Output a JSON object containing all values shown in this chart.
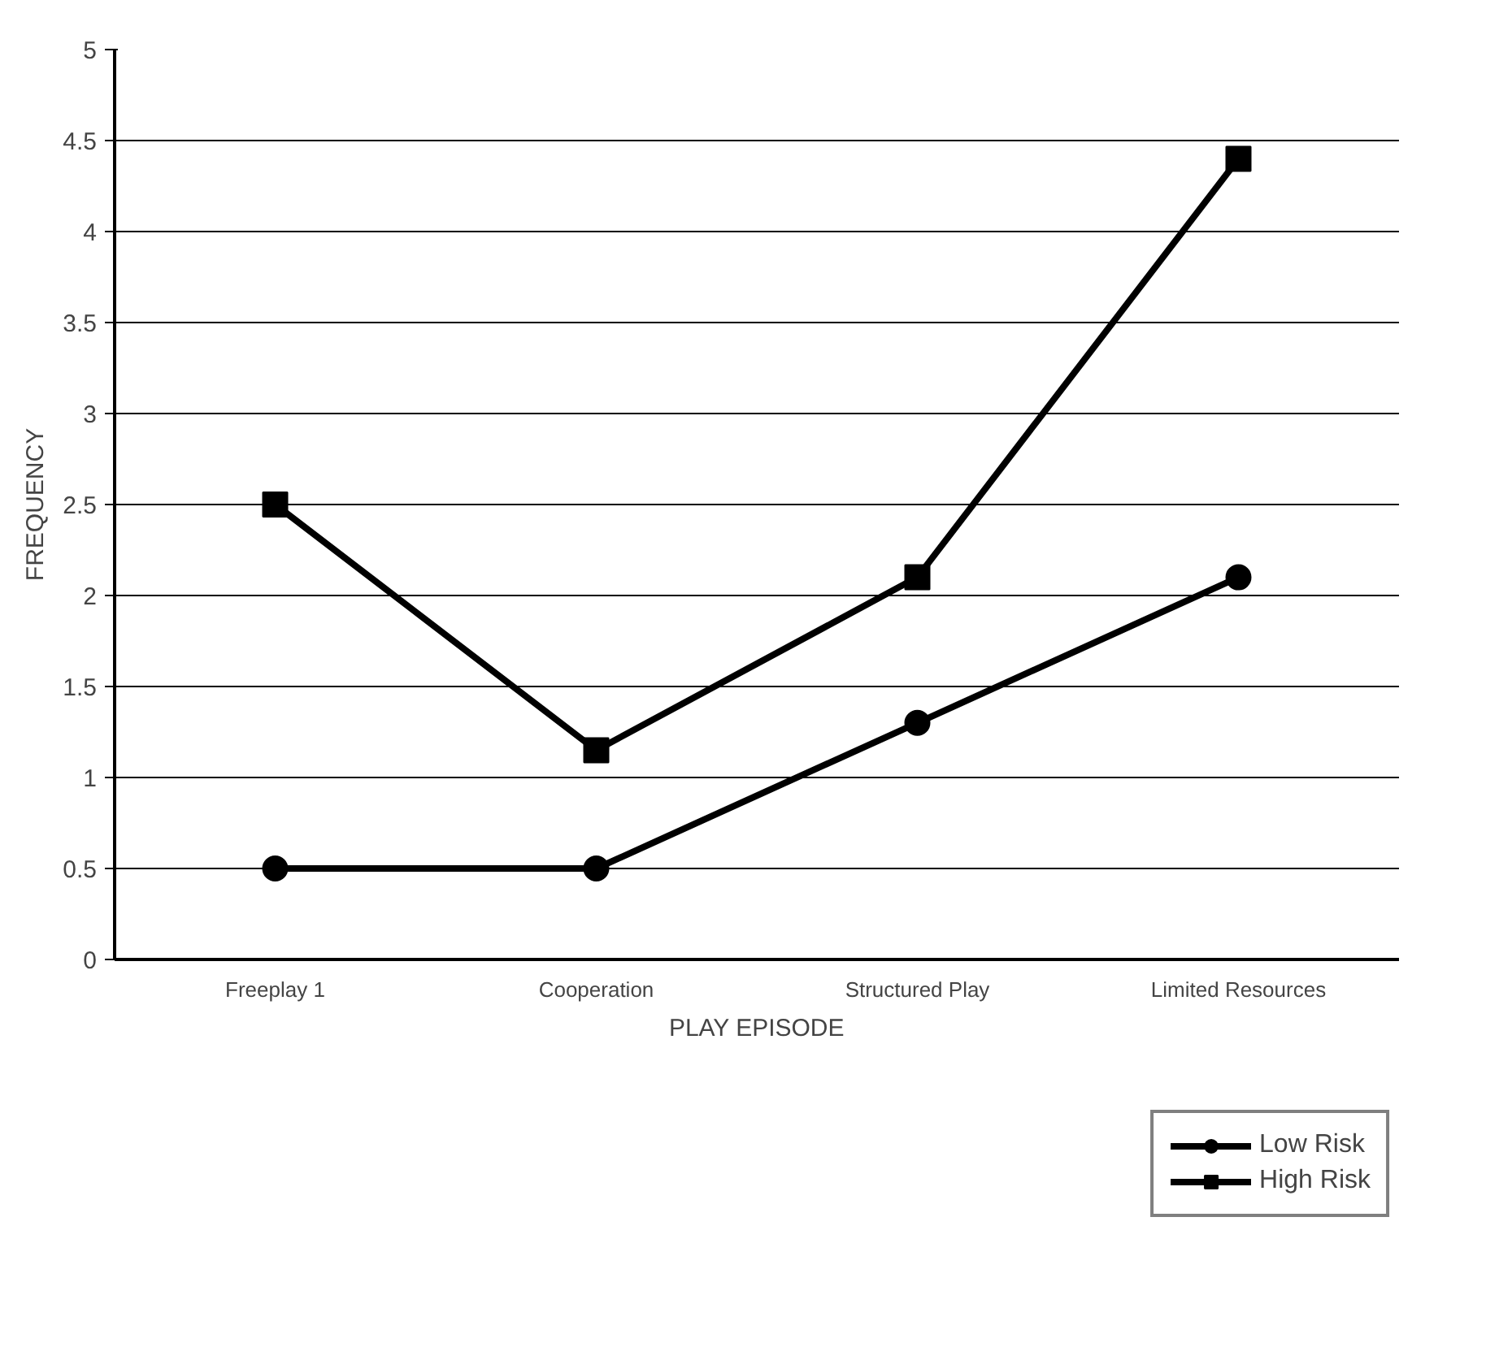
{
  "chart_data": {
    "type": "line",
    "xlabel": "PLAY EPISODE",
    "ylabel": "FREQUENCY",
    "categories": [
      "Freeplay 1",
      "Cooperation",
      "Structured Play",
      "Limited Resources"
    ],
    "series": [
      {
        "name": "Low Risk",
        "color": "#000000",
        "marker": "circle",
        "values": [
          0.5,
          0.5,
          1.3,
          2.1
        ]
      },
      {
        "name": "High Risk",
        "color": "#000000",
        "marker": "square",
        "values": [
          2.5,
          1.15,
          2.1,
          4.4
        ]
      }
    ],
    "ylim": [
      0,
      5
    ],
    "yticks": [
      0,
      0.5,
      1,
      1.5,
      2,
      2.5,
      3,
      3.5,
      4,
      4.5,
      5
    ],
    "grid": "y",
    "legend": "bottom right",
    "line_style": "solid"
  }
}
